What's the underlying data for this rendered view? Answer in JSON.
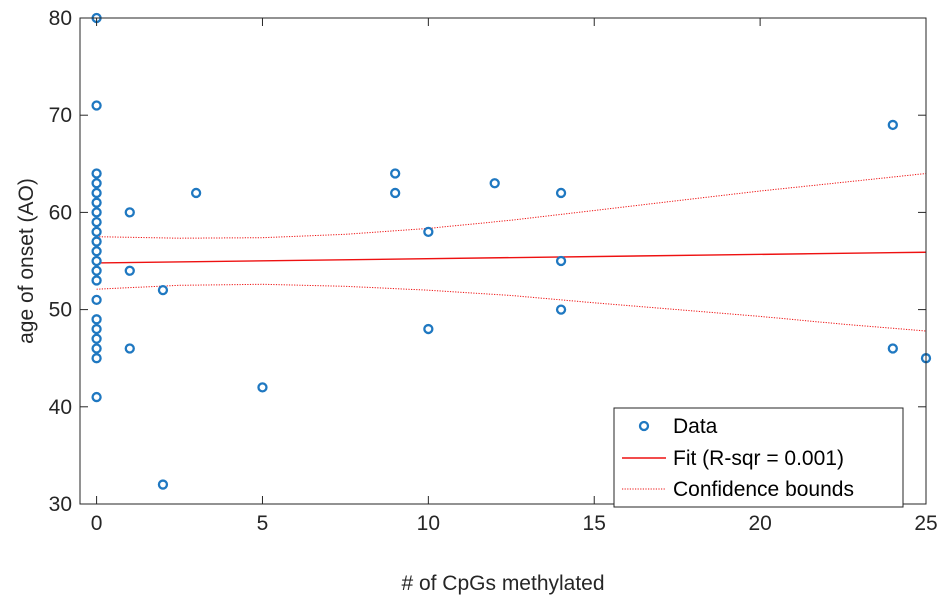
{
  "chart_data": {
    "type": "scatter",
    "title": "",
    "xlabel": "# of CpGs methylated",
    "ylabel": "age of onset (AO)",
    "xlim": [
      -0.5,
      25
    ],
    "ylim": [
      30,
      80
    ],
    "xticks": [
      0,
      5,
      10,
      15,
      20,
      25
    ],
    "yticks": [
      30,
      40,
      50,
      60,
      70,
      80
    ],
    "xtick_labels": [
      "0",
      "5",
      "10",
      "15",
      "20",
      "25"
    ],
    "ytick_labels": [
      "30",
      "40",
      "50",
      "60",
      "70",
      "80"
    ],
    "grid": false,
    "legend_position": "bottom-right",
    "colors": {
      "data": "#1f78c1",
      "fit": "#ee1111",
      "bounds": "#ee1111",
      "axis": "#262626"
    },
    "series": [
      {
        "name": "Data",
        "kind": "markers",
        "points": [
          [
            0,
            80
          ],
          [
            0,
            71
          ],
          [
            0,
            64
          ],
          [
            0,
            63
          ],
          [
            0,
            62
          ],
          [
            0,
            61
          ],
          [
            0,
            60
          ],
          [
            0,
            59
          ],
          [
            0,
            58
          ],
          [
            0,
            57
          ],
          [
            0,
            56
          ],
          [
            0,
            55
          ],
          [
            0,
            54
          ],
          [
            0,
            53
          ],
          [
            0,
            51
          ],
          [
            0,
            49
          ],
          [
            0,
            48
          ],
          [
            0,
            47
          ],
          [
            0,
            46
          ],
          [
            0,
            45
          ],
          [
            0,
            41
          ],
          [
            1,
            60
          ],
          [
            1,
            54
          ],
          [
            1,
            46
          ],
          [
            2,
            52
          ],
          [
            2,
            32
          ],
          [
            3,
            62
          ],
          [
            5,
            42
          ],
          [
            9,
            64
          ],
          [
            9,
            62
          ],
          [
            10,
            58
          ],
          [
            10,
            48
          ],
          [
            12,
            63
          ],
          [
            14,
            62
          ],
          [
            14,
            55
          ],
          [
            14,
            50
          ],
          [
            24,
            69
          ],
          [
            24,
            46
          ],
          [
            25,
            45
          ]
        ]
      },
      {
        "name": "Fit (R-sqr = 0.001)",
        "kind": "line",
        "points": [
          [
            0,
            54.8
          ],
          [
            25,
            55.9
          ]
        ]
      },
      {
        "name": "Confidence bounds",
        "kind": "dotted",
        "upper": [
          [
            0,
            57.5
          ],
          [
            2.5,
            57.35
          ],
          [
            5,
            57.4
          ],
          [
            7.5,
            57.75
          ],
          [
            10,
            58.35
          ],
          [
            12.5,
            59.2
          ],
          [
            15,
            60.2
          ],
          [
            17.5,
            61.2
          ],
          [
            20,
            62.2
          ],
          [
            22.5,
            63.1
          ],
          [
            25,
            64.0
          ]
        ],
        "lower": [
          [
            0,
            52.1
          ],
          [
            2.5,
            52.5
          ],
          [
            5,
            52.6
          ],
          [
            7.5,
            52.4
          ],
          [
            10,
            52.0
          ],
          [
            12.5,
            51.45
          ],
          [
            15,
            50.7
          ],
          [
            17.5,
            50.0
          ],
          [
            20,
            49.3
          ],
          [
            22.5,
            48.5
          ],
          [
            25,
            47.8
          ]
        ]
      }
    ]
  }
}
